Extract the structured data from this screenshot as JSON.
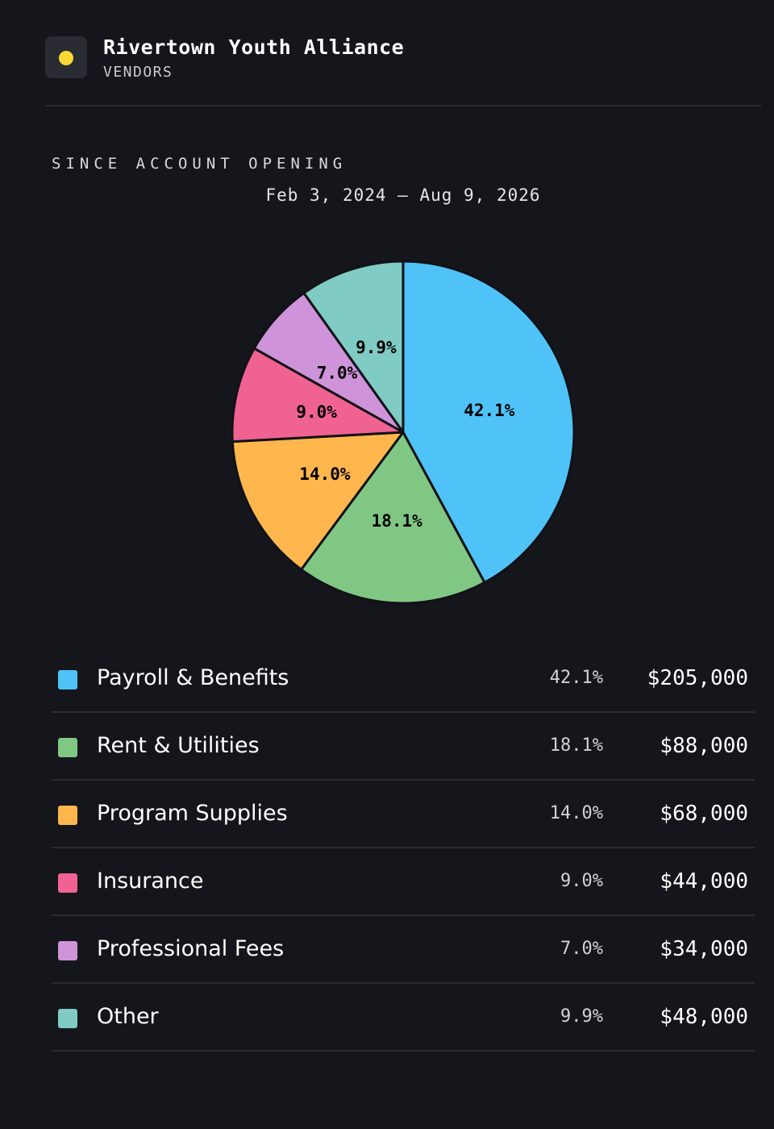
{
  "header": {
    "org_name": "Rivertown Youth Alliance",
    "subtitle": "VENDORS",
    "logo_color": "#fdd835"
  },
  "period": {
    "label": "SINCE ACCOUNT OPENING",
    "range": "Feb 3, 2024 — Aug 9, 2026"
  },
  "chart_data": {
    "type": "pie",
    "categories": [
      "Payroll & Benefits",
      "Rent & Utilities",
      "Program Supplies",
      "Insurance",
      "Professional Fees",
      "Other"
    ],
    "values": [
      205000,
      88000,
      68000,
      44000,
      34000,
      48000
    ],
    "percent_labels": [
      "42.1%",
      "18.1%",
      "14.0%",
      "9.0%",
      "7.0%",
      "9.9%"
    ],
    "amount_labels": [
      "$205,000",
      "$88,000",
      "$68,000",
      "$44,000",
      "$34,000",
      "$48,000"
    ],
    "colors": [
      "#4fc3f7",
      "#81c784",
      "#ffb74d",
      "#f06292",
      "#ce93d8",
      "#80cbc4"
    ],
    "start": "12 o'clock, clockwise"
  }
}
